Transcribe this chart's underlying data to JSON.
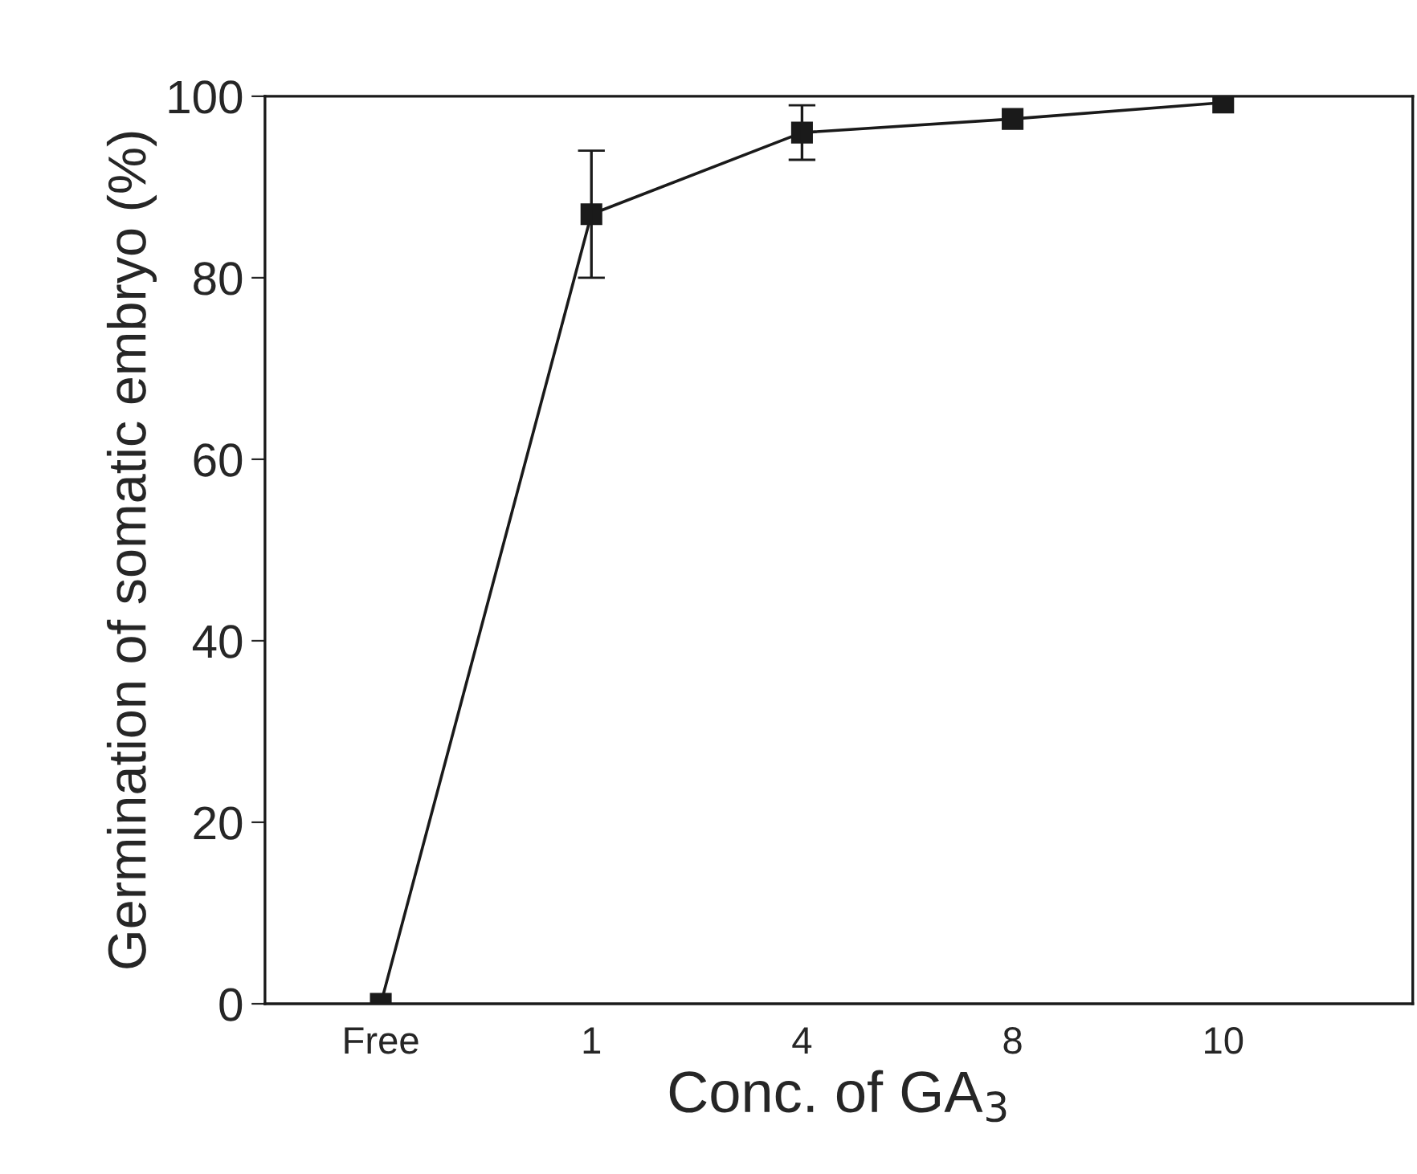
{
  "chart_data": {
    "type": "line",
    "xlabel": "Conc. of GA$_{3}$",
    "ylabel": "Germination of somatic embryo (%)",
    "categories": [
      "Free",
      "1",
      "4",
      "8",
      "10"
    ],
    "series": [
      {
        "color": "#1a1a1a",
        "values": [
          0,
          87,
          96,
          97.5,
          99.3
        ],
        "errors": [
          null,
          7,
          3,
          null,
          null
        ]
      }
    ],
    "ylim": [
      0,
      100
    ],
    "yticks": [
      0,
      20,
      40,
      60,
      80,
      100
    ],
    "grid": false,
    "legend": false,
    "marker": "square",
    "line_style": "solid"
  }
}
